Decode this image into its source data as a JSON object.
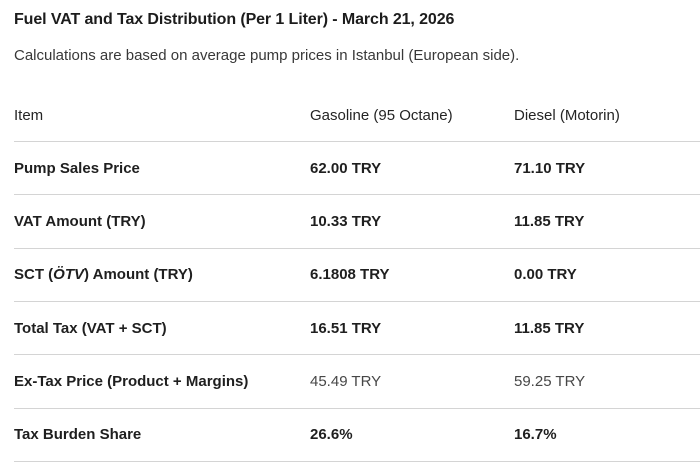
{
  "page": {
    "title": "Fuel VAT and Tax Distribution (Per 1 Liter) - March 21, 2026",
    "subtitle": "Calculations are based on average pump prices in Istanbul (European side)."
  },
  "table": {
    "sct_label_parts": {
      "prefix": "SCT (",
      "italic": "ÖTV",
      "suffix": ") Amount (TRY)"
    }
  },
  "chart_data": {
    "type": "table",
    "title": "Fuel VAT and Tax Distribution (Per 1 Liter) - March 21, 2026",
    "subtitle": "Calculations are based on average pump prices in Istanbul (European side).",
    "columns": [
      "Item",
      "Gasoline (95 Octane)",
      "Diesel (Motorin)"
    ],
    "rows": [
      [
        "Pump Sales Price",
        "62.00 TRY",
        "71.10 TRY"
      ],
      [
        "VAT Amount (TRY)",
        "10.33 TRY",
        "11.85 TRY"
      ],
      [
        "SCT (ÖTV) Amount (TRY)",
        "6.1808 TRY",
        "0.00 TRY"
      ],
      [
        "Total Tax (VAT + SCT)",
        "16.51 TRY",
        "11.85 TRY"
      ],
      [
        "Ex-Tax Price (Product + Margins)",
        "45.49 TRY",
        "59.25 TRY"
      ],
      [
        "Tax Burden Share",
        "26.6%",
        "16.7%"
      ]
    ],
    "units": "TRY per liter",
    "notes": "Values for Ex-Tax Price row rendered in regular (non-bold) weight; all other row values bold."
  }
}
